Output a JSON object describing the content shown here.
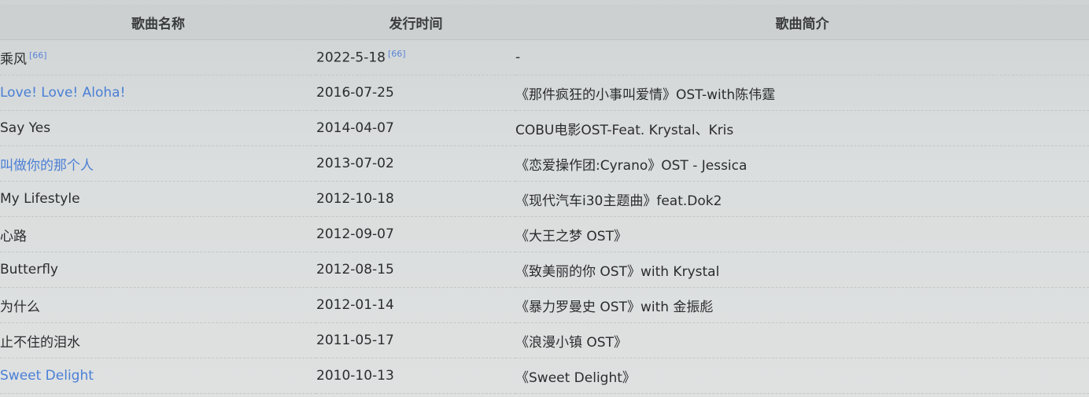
{
  "table": {
    "headers": [
      "歌曲名称",
      "发行时间",
      "歌曲简介"
    ],
    "rows": [
      {
        "name": "乘风",
        "name_ref": "[66]",
        "date": "2022-5-18",
        "date_ref": "[66]",
        "desc": "-",
        "is_link": false
      },
      {
        "name": "Love! Love! Aloha!",
        "name_ref": "",
        "date": "2016-07-25",
        "date_ref": "",
        "desc": "《那件疯狂的小事叫爱情》OST-with陈伟霆",
        "is_link": true
      },
      {
        "name": "Say Yes",
        "name_ref": "",
        "date": "2014-04-07",
        "date_ref": "",
        "desc": "COBU电影OST-Feat. Krystal、Kris",
        "is_link": false
      },
      {
        "name": "叫做你的那个人",
        "name_ref": "",
        "date": "2013-07-02",
        "date_ref": "",
        "desc": "《恋爱操作团:Cyrano》OST - Jessica",
        "is_link": true
      },
      {
        "name": "My Lifestyle",
        "name_ref": "",
        "date": "2012-10-18",
        "date_ref": "",
        "desc": "《现代汽车i30主题曲》feat.Dok2",
        "is_link": false
      },
      {
        "name": "心路",
        "name_ref": "",
        "date": "2012-09-07",
        "date_ref": "",
        "desc": "《大王之梦 OST》",
        "is_link": false
      },
      {
        "name": "Butterfly",
        "name_ref": "",
        "date": "2012-08-15",
        "date_ref": "",
        "desc": "《致美丽的你 OST》with Krystal",
        "is_link": false
      },
      {
        "name": "为什么",
        "name_ref": "",
        "date": "2012-01-14",
        "date_ref": "",
        "desc": "《暴力罗曼史 OST》with 金振彪",
        "is_link": false
      },
      {
        "name": "止不住的泪水",
        "name_ref": "",
        "date": "2011-05-17",
        "date_ref": "",
        "desc": "《浪漫小镇 OST》",
        "is_link": false
      },
      {
        "name": "Sweet Delight",
        "name_ref": "",
        "date": "2010-10-13",
        "date_ref": "",
        "desc": "《Sweet Delight》",
        "is_link": true
      }
    ]
  },
  "colors": {
    "link": "#4a7fd6",
    "text": "#2b2c2e",
    "background": "#dadddd"
  }
}
